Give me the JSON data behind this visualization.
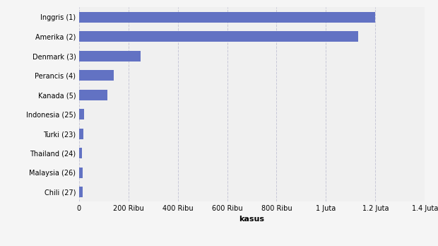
{
  "categories": [
    "Chili (27)",
    "Malaysia (26)",
    "Thailand (24)",
    "Turki (23)",
    "Indonesia (25)",
    "Kanada (5)",
    "Perancis (4)",
    "Denmark (3)",
    "Amerika (2)",
    "Inggris (1)"
  ],
  "values": [
    15000,
    16000,
    14000,
    18000,
    20000,
    115000,
    140000,
    250000,
    1130000,
    1200000
  ],
  "bar_color": "#6272c3",
  "xlabel": "kasus",
  "xlim": [
    0,
    1400000
  ],
  "xticks": [
    0,
    200000,
    400000,
    600000,
    800000,
    1000000,
    1200000,
    1400000
  ],
  "xtick_labels": [
    "0",
    "200 Ribu",
    "400 Ribu",
    "600 Ribu",
    "800 Ribu",
    "1 Juta",
    "1.2 Juta",
    "1.4 Juta"
  ],
  "background_color": "#f5f5f5",
  "plot_bg_color": "#f0f0f0",
  "grid_color": "#c8c8d8",
  "ytick_fontsize": 7,
  "xtick_fontsize": 7,
  "xlabel_fontsize": 8,
  "bar_height": 0.55
}
